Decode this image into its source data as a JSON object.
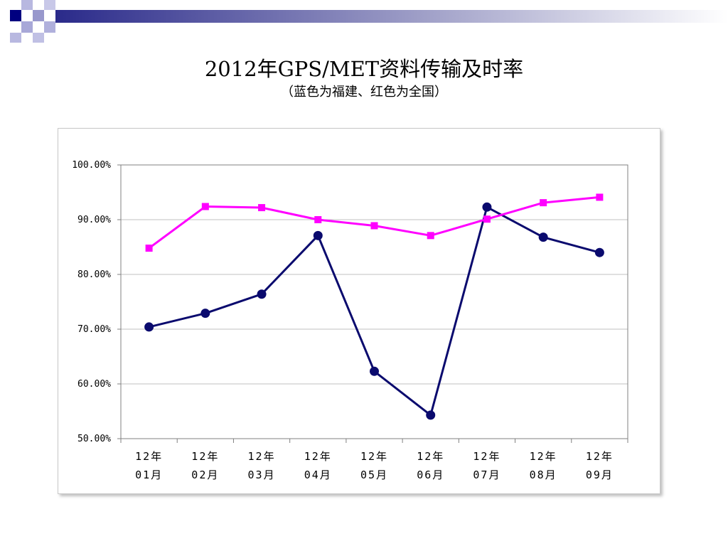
{
  "slide": {
    "title": "2012年GPS/MET资料传输及时率",
    "subtitle": "（蓝色为福建、红色为全国）"
  },
  "colors": {
    "fujian": "#0a0a6e",
    "national": "#ff00ff",
    "gridline": "#c0c0c0",
    "band_dark": "#000080",
    "band_light": "#8888cc"
  },
  "chart_data": {
    "type": "line",
    "categories": [
      [
        "12年",
        "01月"
      ],
      [
        "12年",
        "02月"
      ],
      [
        "12年",
        "03月"
      ],
      [
        "12年",
        "04月"
      ],
      [
        "12年",
        "05月"
      ],
      [
        "12年",
        "06月"
      ],
      [
        "12年",
        "07月"
      ],
      [
        "12年",
        "08月"
      ],
      [
        "12年",
        "09月"
      ]
    ],
    "series": [
      {
        "key": "fujian",
        "marker": "circle",
        "values": [
          70.4,
          72.9,
          76.4,
          87.1,
          62.3,
          54.3,
          92.3,
          86.8,
          84.0
        ]
      },
      {
        "key": "national",
        "marker": "square",
        "values": [
          84.8,
          92.4,
          92.2,
          90.0,
          88.9,
          87.1,
          90.1,
          93.1,
          94.1
        ]
      }
    ],
    "ylim": [
      50,
      100
    ],
    "yticks": [
      "50.00%",
      "60.00%",
      "70.00%",
      "80.00%",
      "90.00%",
      "100.00%"
    ],
    "ytick_values": [
      50,
      60,
      70,
      80,
      90,
      100
    ],
    "grid": true,
    "legend": "none",
    "xlabel": "",
    "ylabel": ""
  }
}
